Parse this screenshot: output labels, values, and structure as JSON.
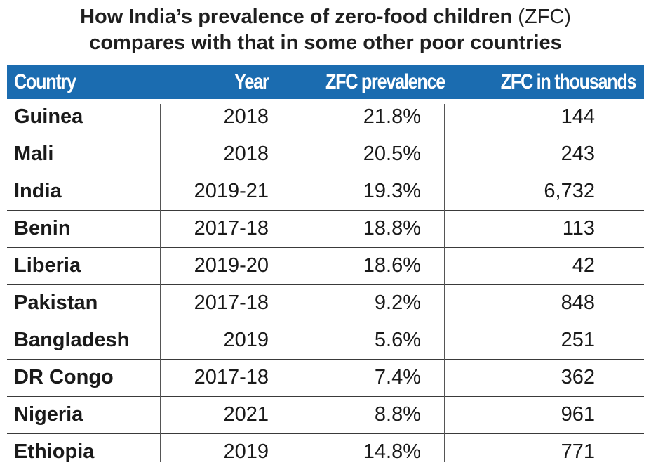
{
  "chart_data": {
    "type": "table",
    "title_line1": "How India’s prevalence of zero-food children",
    "title_abbr": "(ZFC)",
    "title_line2": "compares with that in some other poor countries",
    "columns": [
      "Country",
      "Year",
      "ZFC prevalence",
      "ZFC in thousands"
    ],
    "rows": [
      {
        "country": "Guinea",
        "year": "2018",
        "prevalence": "21.8%",
        "thousands": "144"
      },
      {
        "country": "Mali",
        "year": "2018",
        "prevalence": "20.5%",
        "thousands": "243"
      },
      {
        "country": "India",
        "year": "2019-21",
        "prevalence": "19.3%",
        "thousands": "6,732"
      },
      {
        "country": "Benin",
        "year": "2017-18",
        "prevalence": "18.8%",
        "thousands": "113"
      },
      {
        "country": "Liberia",
        "year": "2019-20",
        "prevalence": "18.6%",
        "thousands": "42"
      },
      {
        "country": "Pakistan",
        "year": "2017-18",
        "prevalence": "9.2%",
        "thousands": "848"
      },
      {
        "country": "Bangladesh",
        "year": "2019",
        "prevalence": "5.6%",
        "thousands": "251"
      },
      {
        "country": "DR Congo",
        "year": "2017-18",
        "prevalence": "7.4%",
        "thousands": "362"
      },
      {
        "country": "Nigeria",
        "year": "2021",
        "prevalence": "8.8%",
        "thousands": "961"
      },
      {
        "country": "Ethiopia",
        "year": "2019",
        "prevalence": "14.8%",
        "thousands": "771"
      }
    ]
  },
  "colors": {
    "header_bg": "#1b6cb0",
    "header_text": "#ffffff",
    "body_text": "#1a1a1a"
  }
}
